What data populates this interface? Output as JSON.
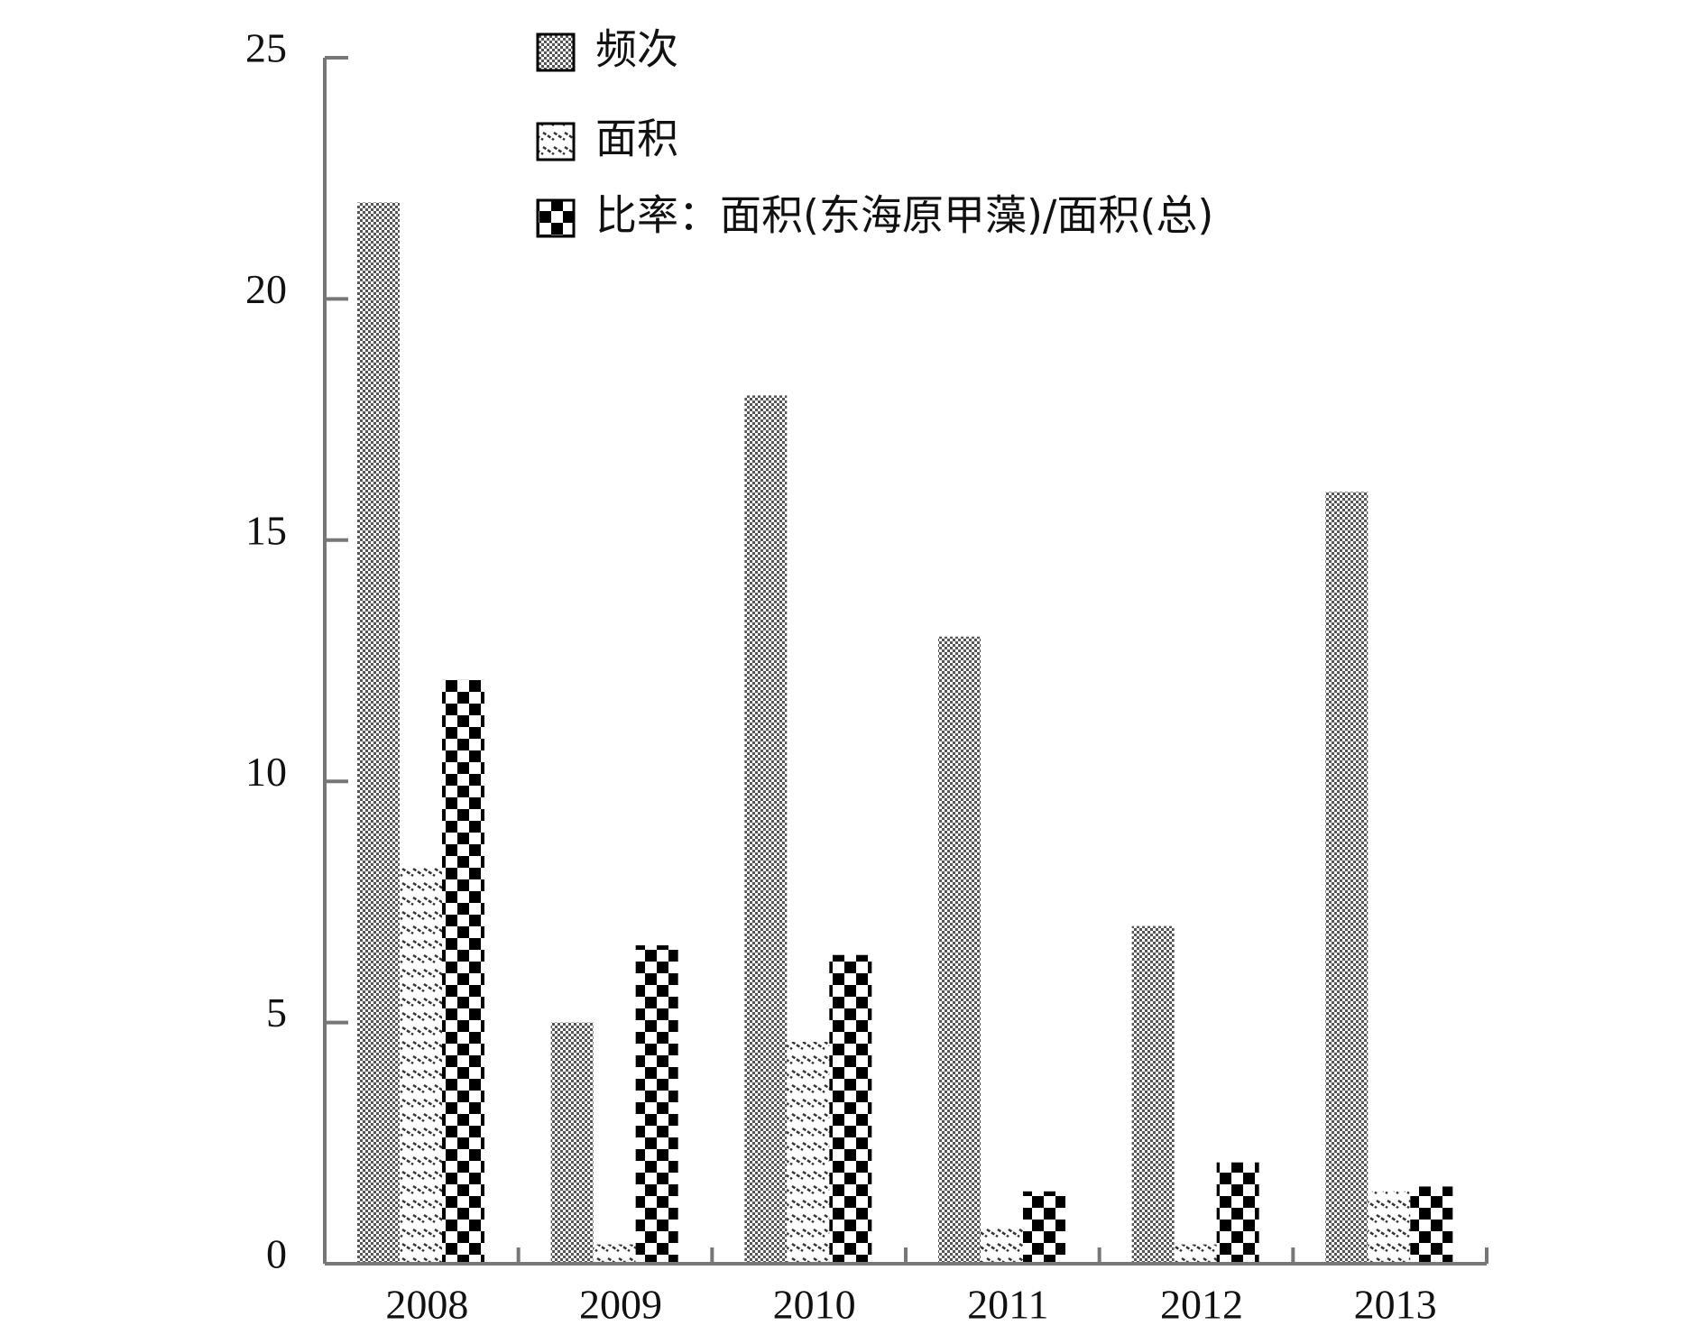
{
  "chart_data": {
    "type": "bar",
    "categories": [
      "2008",
      "2009",
      "2010",
      "2011",
      "2012",
      "2013"
    ],
    "series": [
      {
        "name": "频次",
        "color": "#555555",
        "values": [
          22,
          5,
          18,
          13,
          7,
          16
        ]
      },
      {
        "name": "面积",
        "color": "#888888",
        "values": [
          8.2,
          0.4,
          4.6,
          0.8,
          0.4,
          1.5
        ]
      },
      {
        "name": "比率：面积(东海原甲藻)/面积(总)",
        "color": "#000000",
        "values": [
          12.1,
          6.6,
          6.4,
          1.5,
          2.1,
          1.6
        ]
      }
    ],
    "ylim": [
      0,
      25
    ],
    "yticks": [
      0,
      5,
      10,
      15,
      20,
      25
    ],
    "grid": false
  }
}
